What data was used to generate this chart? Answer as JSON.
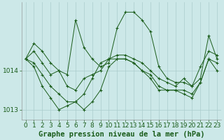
{
  "title": "Graphe pression niveau de la mer (hPa)",
  "background_color": "#cce8e8",
  "grid_color": "#aacccc",
  "line_color": "#1a5c1a",
  "marker_color": "#1a5c1a",
  "tick_color": "#1a5c1a",
  "xlim": [
    -0.5,
    23.5
  ],
  "ylim": [
    1012.75,
    1015.75
  ],
  "yticks": [
    1013,
    1014
  ],
  "xticks": [
    0,
    1,
    2,
    3,
    4,
    5,
    6,
    7,
    8,
    9,
    10,
    11,
    12,
    13,
    14,
    15,
    16,
    17,
    18,
    19,
    20,
    21,
    22,
    23
  ],
  "series": [
    [
      1014.3,
      1014.7,
      null,
      null,
      1014.0,
      null,
      1015.3,
      null,
      null,
      null,
      1014.2,
      1015.1,
      1015.5,
      1015.5,
      null,
      null,
      1014.1,
      null,
      null,
      null,
      null,
      null,
      1014.9,
      1014.3
    ],
    [
      1014.3,
      null,
      1014.2,
      1013.9,
      null,
      1013.6,
      null,
      1013.8,
      null,
      1014.0,
      1014.3,
      null,
      null,
      null,
      1014.2,
      1014.0,
      null,
      1013.7,
      null,
      1013.8,
      1013.6,
      1014.1,
      null,
      1014.4
    ],
    [
      1014.3,
      null,
      null,
      null,
      null,
      1013.2,
      1013.2,
      1013.4,
      1013.8,
      1014.2,
      null,
      null,
      null,
      null,
      null,
      1013.9,
      1013.6,
      null,
      1013.5,
      null,
      1013.4,
      null,
      null,
      1014.2
    ],
    [
      1014.3,
      null,
      1013.6,
      null,
      1013.0,
      null,
      1013.2,
      1013.0,
      null,
      null,
      null,
      null,
      null,
      null,
      null,
      null,
      null,
      null,
      1013.5,
      1013.4,
      1013.3,
      null,
      1014.3,
      null
    ]
  ],
  "series_full": [
    [
      1014.3,
      1014.7,
      1014.5,
      1014.2,
      1014.0,
      1013.9,
      1015.3,
      1014.6,
      1014.3,
      1014.1,
      1014.2,
      1015.1,
      1015.5,
      1015.5,
      1015.3,
      1015.0,
      1014.1,
      1013.8,
      1013.7,
      1013.7,
      1013.6,
      1013.8,
      1014.9,
      1014.3
    ],
    [
      1014.3,
      1014.5,
      1014.2,
      1013.9,
      1014.0,
      1013.6,
      1013.5,
      1013.8,
      1013.9,
      1014.0,
      1014.3,
      1014.4,
      1014.4,
      1014.3,
      1014.2,
      1014.0,
      1013.8,
      1013.7,
      1013.6,
      1013.8,
      1013.6,
      1014.1,
      1014.5,
      1014.4
    ],
    [
      1014.3,
      1014.2,
      1013.9,
      1013.6,
      1013.4,
      1013.2,
      1013.2,
      1013.4,
      1013.8,
      1014.2,
      1014.3,
      1014.3,
      1014.3,
      1014.2,
      1014.0,
      1013.9,
      1013.6,
      1013.5,
      1013.5,
      1013.5,
      1013.4,
      1013.7,
      1014.3,
      1014.2
    ],
    [
      1014.3,
      1014.1,
      1013.6,
      1013.3,
      1013.0,
      1013.1,
      1013.2,
      1013.0,
      1013.2,
      1013.5,
      1014.1,
      1014.3,
      1014.3,
      1014.2,
      1014.0,
      1013.8,
      1013.5,
      1013.5,
      1013.5,
      1013.4,
      1013.3,
      1013.7,
      1014.3,
      1014.0
    ]
  ],
  "tick_fontsize": 6.5,
  "label_fontsize": 7.5,
  "linewidth": 0.7,
  "markersize": 3.0
}
